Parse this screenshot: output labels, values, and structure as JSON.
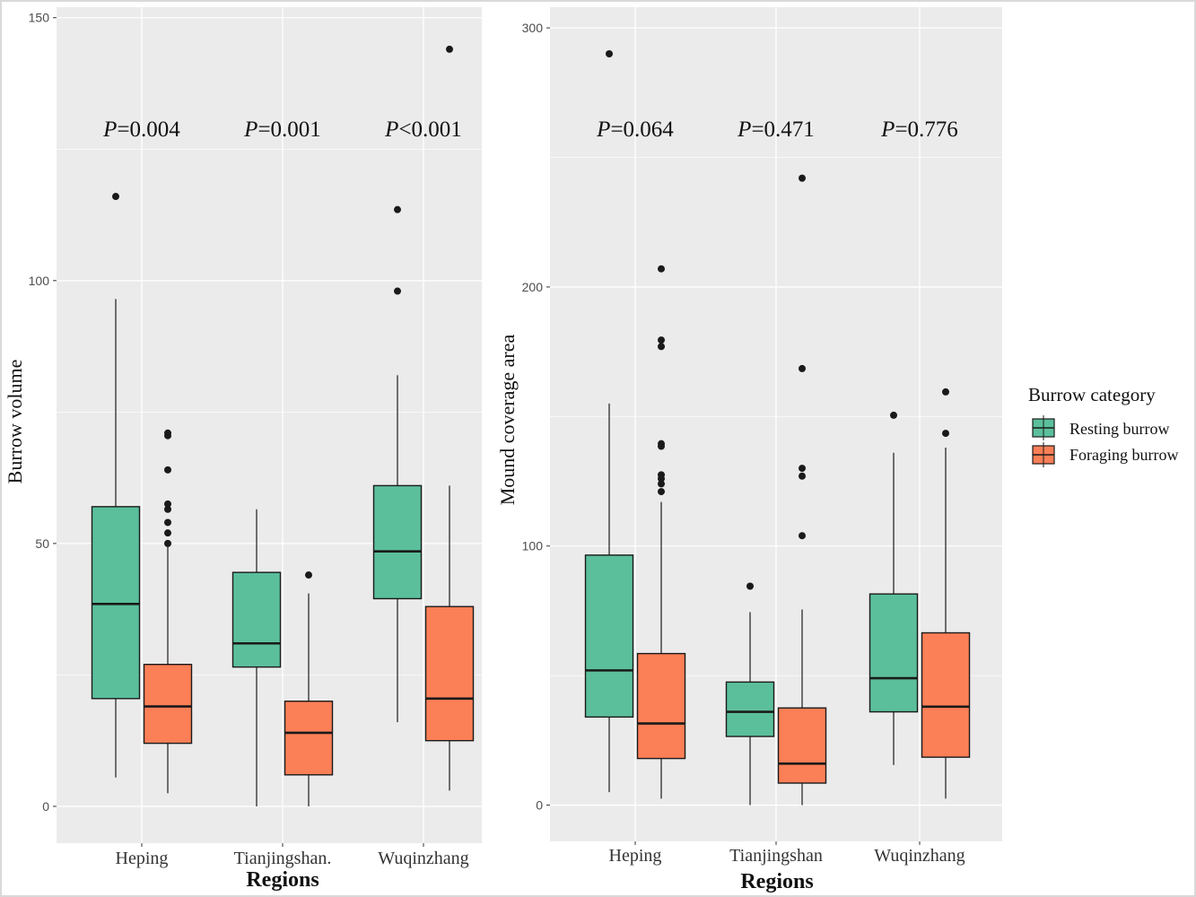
{
  "colors": {
    "resting": "#5bbf9b",
    "foraging": "#fb7f57",
    "panel_bg": "#ebebeb",
    "grid": "#ffffff",
    "ink": "#1a1a1a"
  },
  "legend": {
    "title": "Burrow category",
    "items": [
      {
        "label": "Resting burrow",
        "color": "#5bbf9b"
      },
      {
        "label": "Foraging burrow",
        "color": "#fb7f57"
      }
    ]
  },
  "chart_data": [
    {
      "type": "boxplot",
      "ylabel": "Burrow volume",
      "xlabel": "Regions",
      "ylim": [
        -7,
        152
      ],
      "yticks": [
        0,
        50,
        100,
        150
      ],
      "categories": [
        "Heping",
        "Tianjingshan.",
        "Wuqinzhang"
      ],
      "annotations": [
        {
          "italic": "P",
          "rest": "=0.004"
        },
        {
          "italic": "P",
          "rest": "=0.001"
        },
        {
          "italic": "P",
          "rest": "<0.001"
        }
      ],
      "series": [
        {
          "name": "Resting burrow",
          "boxes": [
            {
              "min": 5.5,
              "q1": 20.5,
              "median": 38.5,
              "q3": 57,
              "max": 96.5,
              "outliers": [
                116
              ]
            },
            {
              "min": 0,
              "q1": 26.5,
              "median": 31,
              "q3": 44.5,
              "max": 56.5,
              "outliers": []
            },
            {
              "min": 16,
              "q1": 39.5,
              "median": 48.5,
              "q3": 61,
              "max": 82,
              "outliers": [
                98,
                113.5
              ]
            }
          ]
        },
        {
          "name": "Foraging burrow",
          "boxes": [
            {
              "min": 2.5,
              "q1": 12,
              "median": 19,
              "q3": 27,
              "max": 49.5,
              "outliers": [
                50,
                52,
                54,
                56.5,
                57.5,
                64,
                70.5,
                71
              ]
            },
            {
              "min": 0,
              "q1": 6,
              "median": 14,
              "q3": 20,
              "max": 40.5,
              "outliers": [
                44
              ]
            },
            {
              "min": 3,
              "q1": 12.5,
              "median": 20.5,
              "q3": 38,
              "max": 61,
              "outliers": [
                144
              ]
            }
          ]
        }
      ]
    },
    {
      "type": "boxplot",
      "ylabel": "Mound coverage area",
      "xlabel": "Regions",
      "ylim": [
        -14,
        308
      ],
      "yticks": [
        0,
        100,
        200,
        300
      ],
      "categories": [
        "Heping",
        "Tianjingshan",
        "Wuqinzhang"
      ],
      "annotations": [
        {
          "italic": "P",
          "rest": "=0.064"
        },
        {
          "italic": "P",
          "rest": "=0.471"
        },
        {
          "italic": "P",
          "rest": "=0.776"
        }
      ],
      "series": [
        {
          "name": "Resting burrow",
          "boxes": [
            {
              "min": 5,
              "q1": 34,
              "median": 52,
              "q3": 96.5,
              "max": 155,
              "outliers": [
                290
              ]
            },
            {
              "min": 0,
              "q1": 26.5,
              "median": 36,
              "q3": 47.5,
              "max": 74.5,
              "outliers": [
                84.5
              ]
            },
            {
              "min": 15.5,
              "q1": 36,
              "median": 49,
              "q3": 81.5,
              "max": 136,
              "outliers": [
                150.5
              ]
            }
          ]
        },
        {
          "name": "Foraging burrow",
          "boxes": [
            {
              "min": 2.5,
              "q1": 18,
              "median": 31.5,
              "q3": 58.5,
              "max": 117,
              "outliers": [
                121,
                124,
                126,
                127.5,
                138.5,
                139.5,
                177,
                179.5,
                207
              ]
            },
            {
              "min": 0,
              "q1": 8.5,
              "median": 16,
              "q3": 37.5,
              "max": 75.5,
              "outliers": [
                104,
                127,
                130,
                168.5,
                242
              ]
            },
            {
              "min": 2.5,
              "q1": 18.5,
              "median": 38,
              "q3": 66.5,
              "max": 138,
              "outliers": [
                143.5,
                159.5
              ]
            }
          ]
        }
      ]
    }
  ]
}
